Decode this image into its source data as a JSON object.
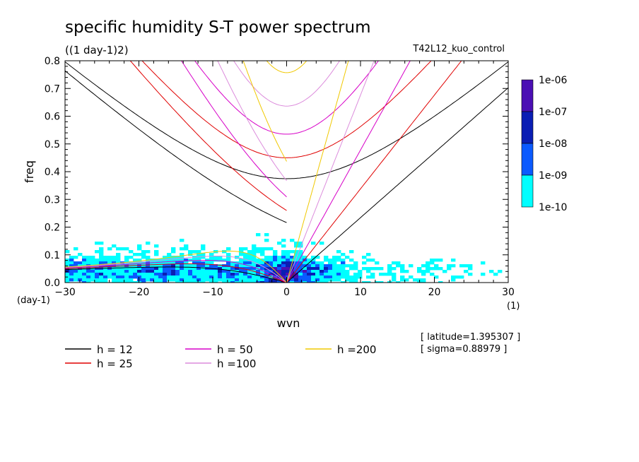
{
  "chart_data": {
    "type": "heatmap",
    "title": "specific humidity S-T power spectrum",
    "subtitle": "((1 day-1)2)",
    "run_label": "T42L12_kuo_control",
    "xlabel": "wvn",
    "ylabel": "freq",
    "x_unit": "(1)",
    "y_unit": "(day-1)",
    "xlim": [
      -30,
      30
    ],
    "ylim": [
      0,
      0.8
    ],
    "x_ticks": [
      "-30",
      "-20",
      "-10",
      "0",
      "10",
      "20",
      "30"
    ],
    "y_ticks": [
      "0.0",
      "0.1",
      "0.2",
      "0.3",
      "0.4",
      "0.5",
      "0.6",
      "0.7",
      "0.8"
    ],
    "colorbar": {
      "labels": [
        "1e-06",
        "1e-07",
        "1e-08",
        "1e-09",
        "1e-10"
      ],
      "colors": [
        "#4b0fb4",
        "#0a1eb4",
        "#0a5aff",
        "#00ffff"
      ]
    },
    "dispersion_curves": [
      {
        "label": "h = 12",
        "h": 12,
        "color": "#000000"
      },
      {
        "label": "h = 25",
        "h": 25,
        "color": "#e00000"
      },
      {
        "label": "h = 50",
        "h": 50,
        "color": "#d700c8"
      },
      {
        "label": "h =100",
        "h": 100,
        "color": "#dc8cdc"
      },
      {
        "label": "h =200",
        "h": 200,
        "color": "#f0c800"
      }
    ],
    "info": [
      "[ latitude=1.395307 ]",
      "[ sigma=0.88979 ]"
    ]
  }
}
